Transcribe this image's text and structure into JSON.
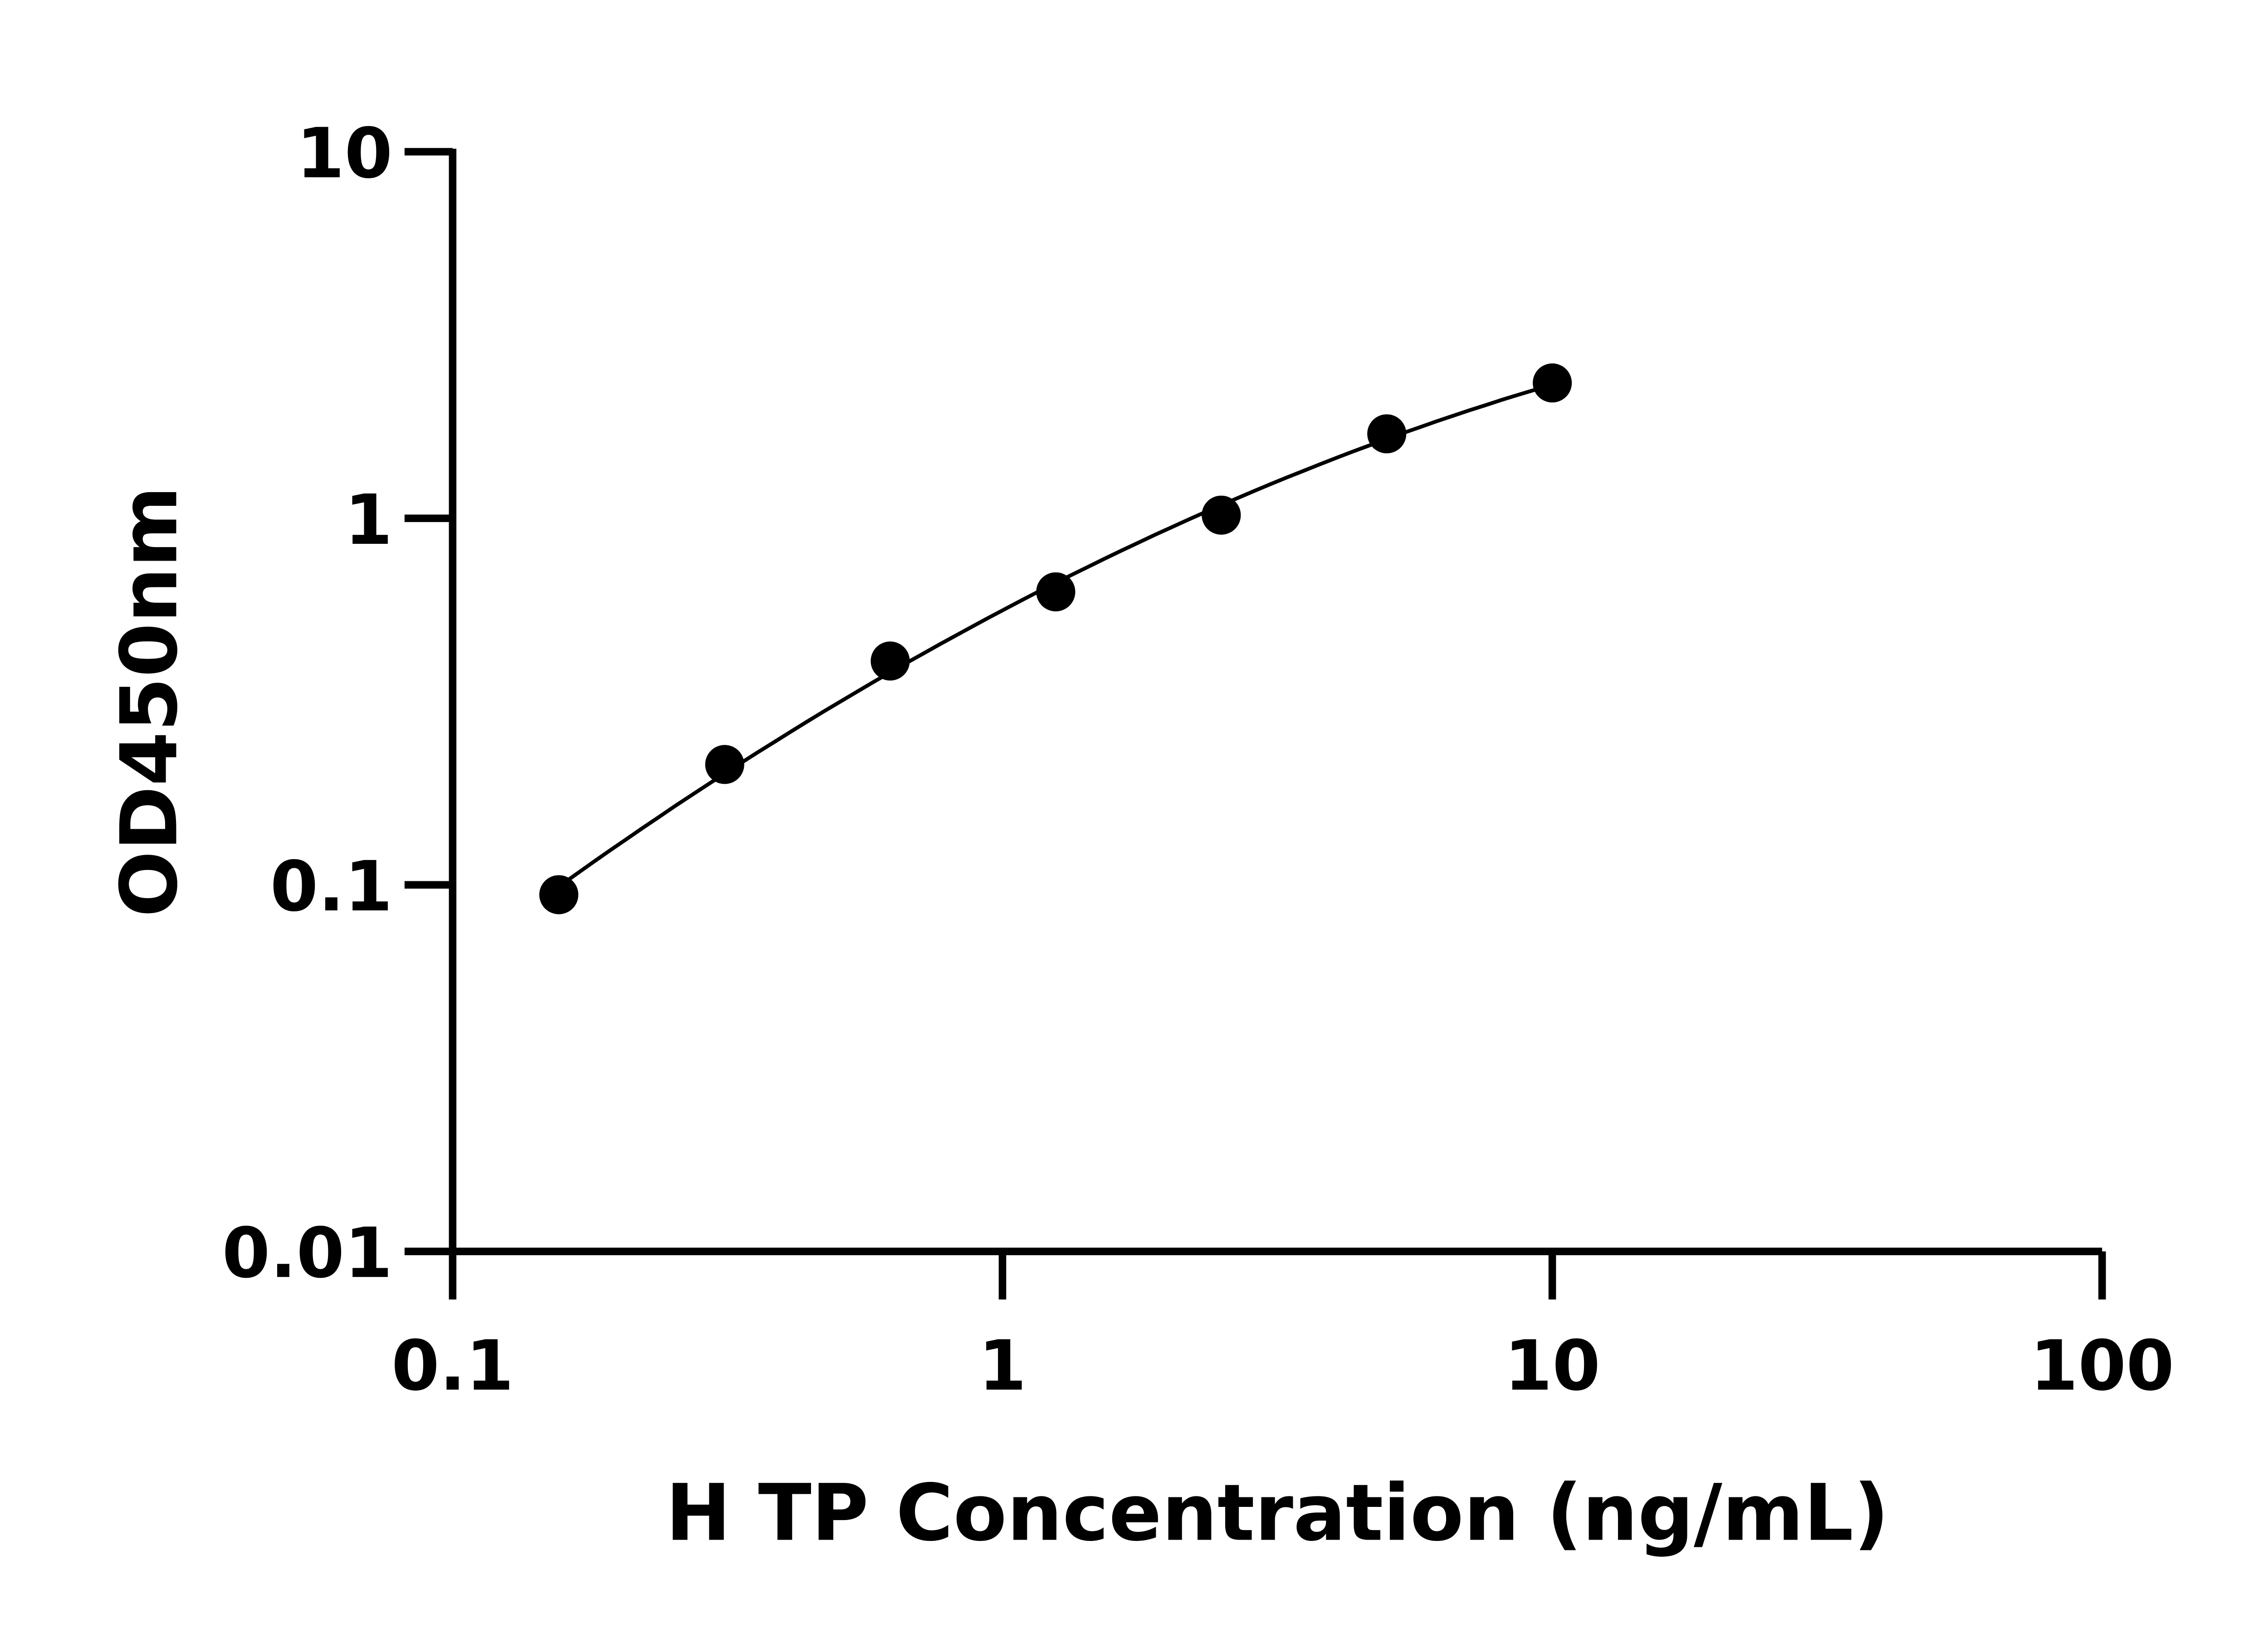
{
  "chart_data": {
    "type": "scatter",
    "title": "",
    "xlabel": "H TP Concentration (ng/mL)",
    "ylabel": "OD450nm",
    "x_scale": "log",
    "y_scale": "log",
    "xlim": [
      0.1,
      100
    ],
    "ylim": [
      0.01,
      10
    ],
    "x_ticks": [
      "0.1",
      "1",
      "10",
      "100"
    ],
    "y_ticks": [
      "0.01",
      "0.1",
      "1",
      "10"
    ],
    "grid": false,
    "fit_curve": true,
    "marker_color": "#000000",
    "series": [
      {
        "x": [
          0.156,
          0.3125,
          0.625,
          1.25,
          2.5,
          5,
          10
        ],
        "y": [
          0.094,
          0.213,
          0.408,
          0.63,
          1.02,
          1.7,
          2.34
        ]
      }
    ]
  }
}
